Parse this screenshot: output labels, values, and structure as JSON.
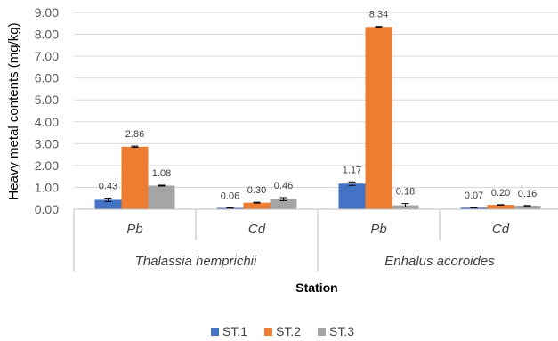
{
  "chart_data": {
    "type": "bar",
    "title": "",
    "ylabel": "Heavy metal contents (mg/kg)",
    "xlabel": "Station",
    "ylim": [
      0,
      9
    ],
    "yticks": [
      "0.00",
      "1.00",
      "2.00",
      "3.00",
      "4.00",
      "5.00",
      "6.00",
      "7.00",
      "8.00",
      "9.00"
    ],
    "grid": "horizontal",
    "legend_position": "bottom",
    "groups": [
      {
        "label": "Thalassia hemprichii",
        "categories": [
          "Pb",
          "Cd"
        ]
      },
      {
        "label": "Enhalus acoroides",
        "categories": [
          "Pb",
          "Cd"
        ]
      }
    ],
    "categories": [
      "Pb",
      "Cd",
      "Pb",
      "Cd"
    ],
    "series": [
      {
        "name": "ST.1",
        "color": "#4472C4",
        "values": [
          0.43,
          0.06,
          1.17,
          0.07
        ],
        "labels": [
          "0.43",
          "0.06",
          "1.17",
          "0.07"
        ],
        "errors": [
          0.08,
          0.01,
          0.08,
          0.01
        ]
      },
      {
        "name": "ST.2",
        "color": "#ED7D31",
        "values": [
          2.86,
          0.3,
          8.34,
          0.2
        ],
        "labels": [
          "2.86",
          "0.30",
          "8.34",
          "0.20"
        ],
        "errors": [
          0.03,
          0.02,
          0.02,
          0.01
        ]
      },
      {
        "name": "ST.3",
        "color": "#A5A5A5",
        "values": [
          1.08,
          0.46,
          0.18,
          0.16
        ],
        "labels": [
          "1.08",
          "0.46",
          "0.18",
          "0.16"
        ],
        "errors": [
          0.02,
          0.07,
          0.08,
          0.01
        ]
      }
    ]
  }
}
